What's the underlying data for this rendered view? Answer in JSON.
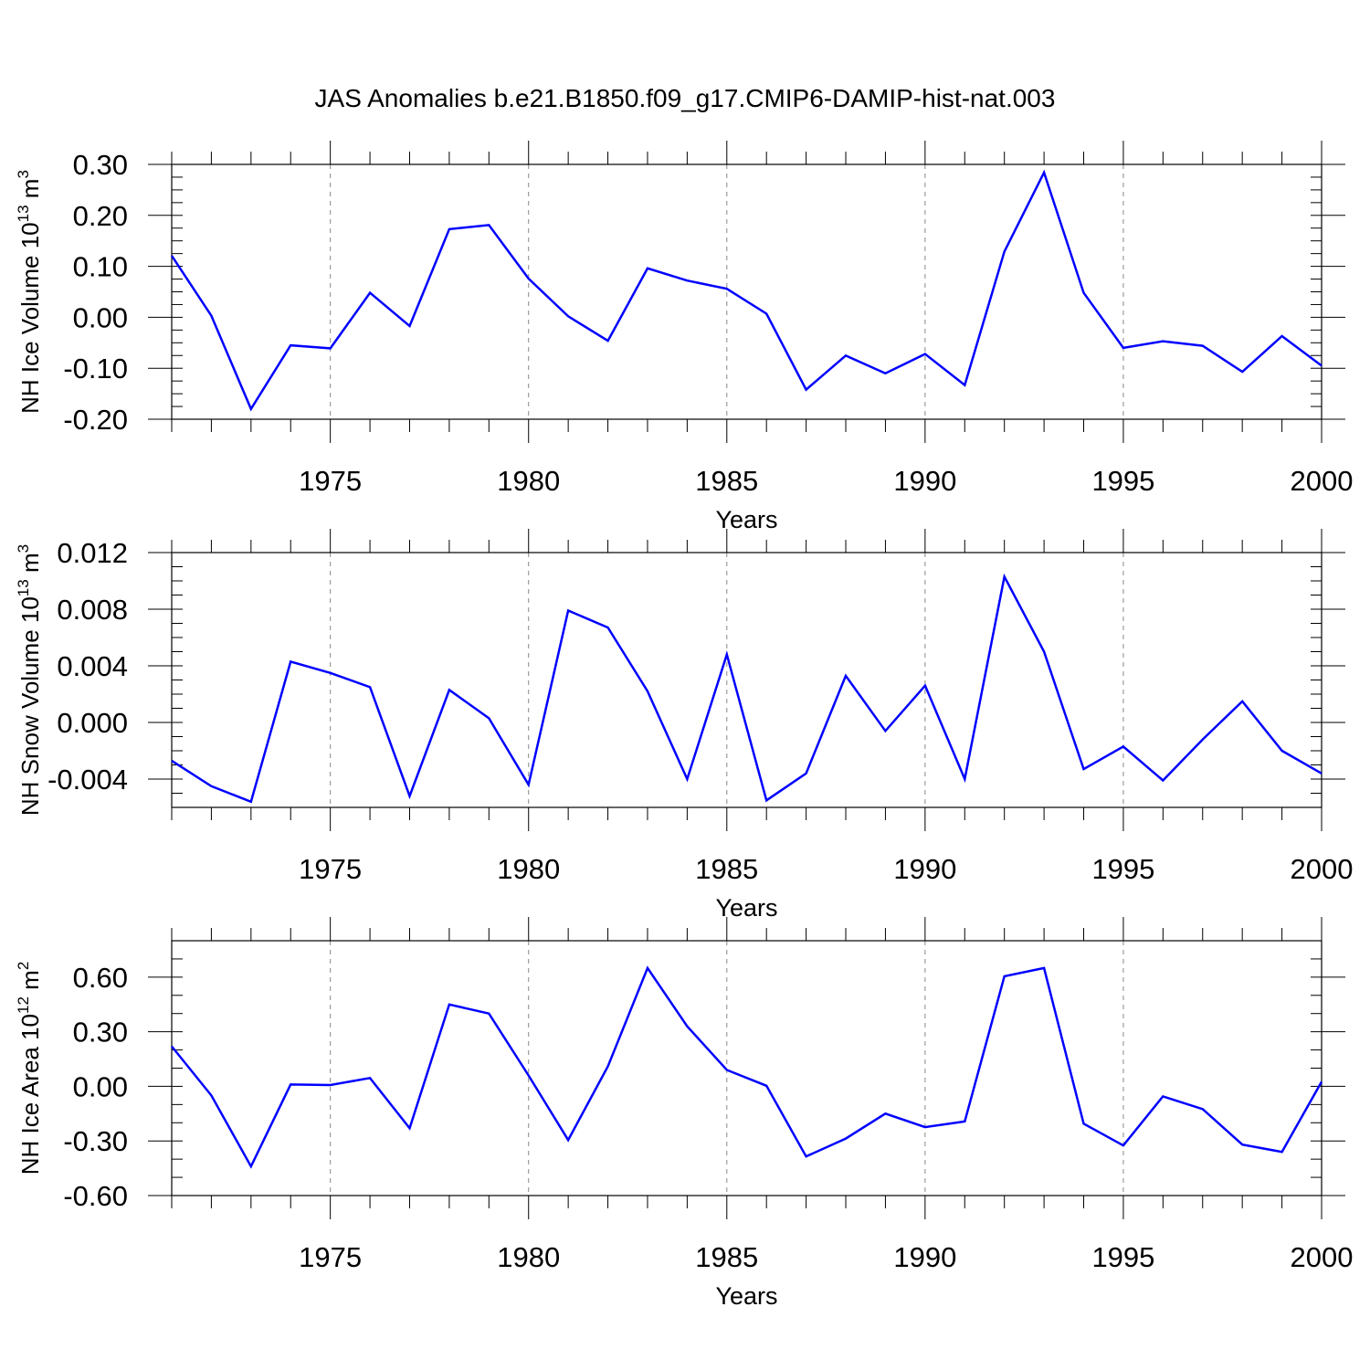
{
  "title": "JAS Anomalies b.e21.B1850.f09_g17.CMIP6-DAMIP-hist-nat.003",
  "colors": {
    "line": "#0000ff",
    "axis": "#000000",
    "grid": "#888888"
  },
  "chart_data": [
    {
      "type": "line",
      "xlabel": "Years",
      "ylabel_main": "NH Ice Volume 10",
      "ylabel_exp": "13",
      "ylabel_unit": " m",
      "ylabel_unit_exp": "3",
      "xlim": [
        1971,
        2000
      ],
      "ylim": [
        -0.2,
        0.3
      ],
      "yticks": [
        -0.2,
        -0.1,
        0.0,
        0.1,
        0.2,
        0.3
      ],
      "ytick_labels": [
        "-0.20",
        "-0.10",
        "0.00",
        "0.10",
        "0.20",
        "0.30"
      ],
      "ytick_minor": 0.025,
      "xticks": [
        1975,
        1980,
        1985,
        1990,
        1995,
        2000
      ],
      "xtick_labels": [
        "1975",
        "1980",
        "1985",
        "1990",
        "1995",
        "2000"
      ],
      "grid_x": true,
      "x": [
        1971,
        1972,
        1973,
        1974,
        1975,
        1976,
        1977,
        1978,
        1979,
        1980,
        1981,
        1982,
        1983,
        1984,
        1985,
        1986,
        1987,
        1988,
        1989,
        1990,
        1991,
        1992,
        1993,
        1994,
        1995,
        1996,
        1997,
        1998,
        1999,
        2000
      ],
      "values": [
        0.121,
        0.003,
        -0.18,
        -0.055,
        -0.061,
        0.048,
        -0.017,
        0.173,
        0.181,
        0.076,
        0.002,
        -0.046,
        0.096,
        0.072,
        0.056,
        0.007,
        -0.142,
        -0.075,
        -0.11,
        -0.072,
        -0.133,
        0.129,
        0.284,
        0.048,
        -0.06,
        -0.047,
        -0.056,
        -0.107,
        -0.037,
        -0.095
      ]
    },
    {
      "type": "line",
      "xlabel": "Years",
      "ylabel_main": "NH Snow Volume 10",
      "ylabel_exp": "13",
      "ylabel_unit": " m",
      "ylabel_unit_exp": "3",
      "xlim": [
        1971,
        2000
      ],
      "ylim": [
        -0.006,
        0.012
      ],
      "yticks": [
        -0.004,
        0.0,
        0.004,
        0.008,
        0.012
      ],
      "ytick_labels": [
        "-0.004",
        "0.000",
        "0.004",
        "0.008",
        "0.012"
      ],
      "ytick_minor": 0.001,
      "xticks": [
        1975,
        1980,
        1985,
        1990,
        1995,
        2000
      ],
      "xtick_labels": [
        "1975",
        "1980",
        "1985",
        "1990",
        "1995",
        "2000"
      ],
      "grid_x": true,
      "x": [
        1971,
        1972,
        1973,
        1974,
        1975,
        1976,
        1977,
        1978,
        1979,
        1980,
        1981,
        1982,
        1983,
        1984,
        1985,
        1986,
        1987,
        1988,
        1989,
        1990,
        1991,
        1992,
        1993,
        1994,
        1995,
        1996,
        1997,
        1998,
        1999,
        2000
      ],
      "values": [
        -0.0027,
        -0.0045,
        -0.0056,
        0.0043,
        0.0035,
        0.0025,
        -0.0052,
        0.0023,
        0.0003,
        -0.0044,
        0.0079,
        0.0067,
        0.0022,
        -0.004,
        0.0048,
        -0.0055,
        -0.0036,
        0.0033,
        -0.0006,
        0.0026,
        -0.004,
        0.0103,
        0.005,
        -0.0033,
        -0.0017,
        -0.0041,
        -0.0012,
        0.0015,
        -0.002,
        -0.0036
      ]
    },
    {
      "type": "line",
      "xlabel": "Years",
      "ylabel_main": "NH Ice Area 10",
      "ylabel_exp": "12",
      "ylabel_unit": " m",
      "ylabel_unit_exp": "2",
      "xlim": [
        1971,
        2000
      ],
      "ylim": [
        -0.6,
        0.8
      ],
      "yticks": [
        -0.6,
        -0.3,
        0.0,
        0.3,
        0.6
      ],
      "ytick_labels": [
        "-0.60",
        "-0.30",
        "0.00",
        "0.30",
        "0.60"
      ],
      "ytick_minor": 0.1,
      "xticks": [
        1975,
        1980,
        1985,
        1990,
        1995,
        2000
      ],
      "xtick_labels": [
        "1975",
        "1980",
        "1985",
        "1990",
        "1995",
        "2000"
      ],
      "grid_x": true,
      "x": [
        1971,
        1972,
        1973,
        1974,
        1975,
        1976,
        1977,
        1978,
        1979,
        1980,
        1981,
        1982,
        1983,
        1984,
        1985,
        1986,
        1987,
        1988,
        1989,
        1990,
        1991,
        1992,
        1993,
        1994,
        1995,
        1996,
        1997,
        1998,
        1999,
        2000
      ],
      "values": [
        0.22,
        -0.05,
        -0.44,
        0.01,
        0.007,
        0.046,
        -0.23,
        0.45,
        0.4,
        0.06,
        -0.295,
        0.11,
        0.65,
        0.33,
        0.09,
        0.003,
        -0.385,
        -0.287,
        -0.15,
        -0.224,
        -0.193,
        0.605,
        0.65,
        -0.205,
        -0.325,
        -0.055,
        -0.125,
        -0.32,
        -0.36,
        0.025
      ]
    }
  ]
}
